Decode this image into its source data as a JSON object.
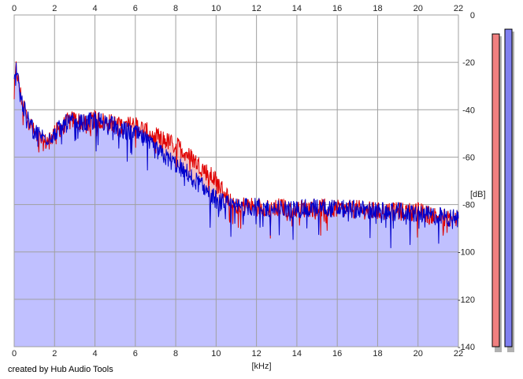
{
  "credit": "created by Hub Audio Tools",
  "colors": {
    "left_channel": "#e00000",
    "right_channel": "#0000cc",
    "fill_blue": "#c0c0ff",
    "fill_red": "#f5c0c0",
    "meter_left": "#f08080",
    "meter_right": "#8080f0",
    "grid": "#a0a0a0",
    "grid_major": "#707070"
  },
  "chart_data": {
    "type": "area",
    "xlabel": "[kHz]",
    "ylabel": "[dB]",
    "xlim": [
      0,
      22
    ],
    "ylim": [
      -140,
      0
    ],
    "x_ticks": [
      "0",
      "2",
      "4",
      "6",
      "8",
      "10",
      "12",
      "14",
      "16",
      "18",
      "20",
      "22"
    ],
    "y_ticks": [
      "0",
      "-20",
      "-40",
      "-60",
      "-80",
      "-100",
      "-120",
      "-140"
    ],
    "grid": true,
    "series": [
      {
        "channel": "left",
        "x": [
          0,
          0.1,
          0.3,
          0.6,
          1.0,
          1.5,
          2.0,
          2.5,
          3.0,
          3.5,
          4.0,
          4.5,
          5.0,
          5.5,
          6.0,
          6.5,
          7.0,
          7.5,
          8.0,
          8.5,
          9.0,
          9.5,
          10.0,
          10.5,
          11.0,
          12.0,
          13.0,
          14.0,
          15.0,
          16.0,
          17.0,
          18.0,
          19.0,
          20.0,
          21.0,
          22.0
        ],
        "y": [
          -34,
          -22,
          -33,
          -42,
          -50,
          -54,
          -50,
          -46,
          -44,
          -46,
          -44,
          -45,
          -46,
          -47,
          -46,
          -49,
          -51,
          -53,
          -55,
          -58,
          -62,
          -66,
          -70,
          -76,
          -80,
          -81,
          -81,
          -82,
          -81,
          -82,
          -82,
          -83,
          -83,
          -83,
          -85,
          -86
        ]
      },
      {
        "channel": "right",
        "x": [
          0,
          0.1,
          0.3,
          0.6,
          1.0,
          1.5,
          2.0,
          2.5,
          3.0,
          3.5,
          4.0,
          4.5,
          5.0,
          5.5,
          6.0,
          6.5,
          7.0,
          7.5,
          8.0,
          8.5,
          9.0,
          9.5,
          10.0,
          10.5,
          11.0,
          12.0,
          13.0,
          14.0,
          15.0,
          16.0,
          17.0,
          18.0,
          19.0,
          20.0,
          21.0,
          22.0
        ],
        "y": [
          -30,
          -20,
          -34,
          -43,
          -49,
          -52,
          -50,
          -46,
          -45,
          -46,
          -44,
          -45,
          -47,
          -49,
          -50,
          -53,
          -57,
          -60,
          -63,
          -66,
          -70,
          -74,
          -78,
          -80,
          -81,
          -81,
          -82,
          -82,
          -81,
          -82,
          -82,
          -83,
          -83,
          -84,
          -85,
          -86
        ]
      }
    ],
    "meters": [
      {
        "channel": "left",
        "level_db": -8
      },
      {
        "channel": "right",
        "level_db": -6
      }
    ]
  }
}
